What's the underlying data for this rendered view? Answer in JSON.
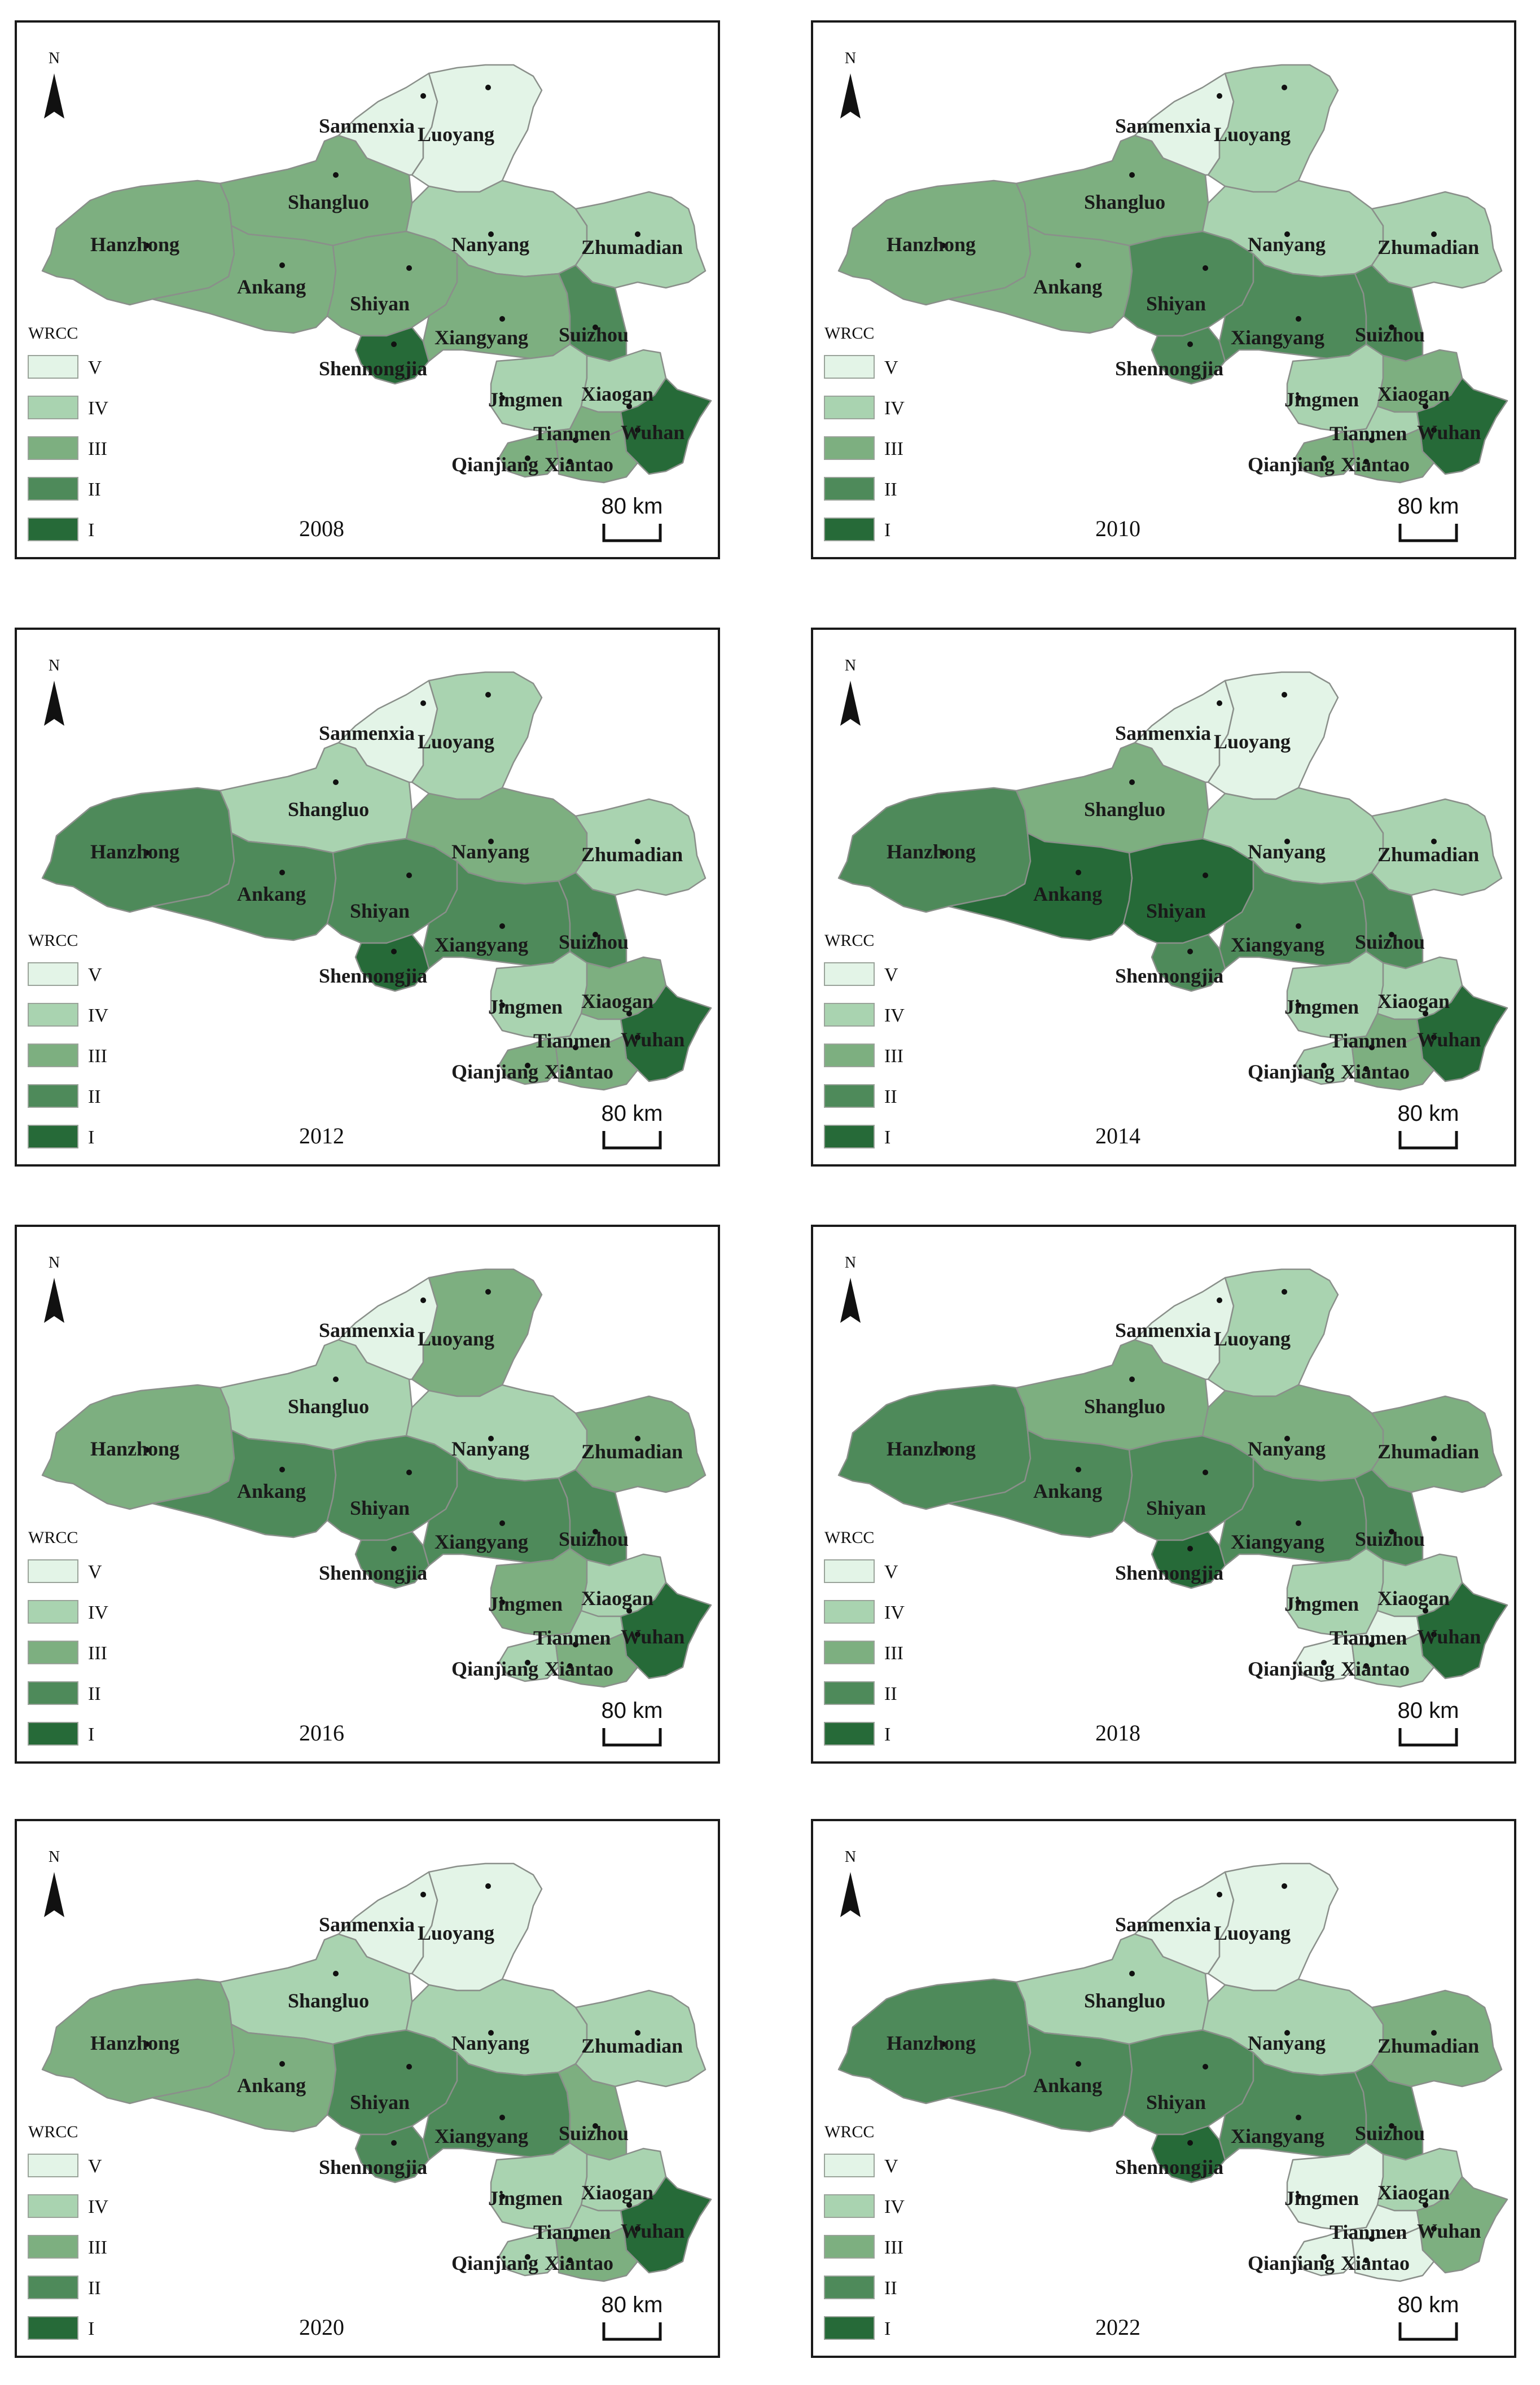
{
  "legend": {
    "title": "WRCC",
    "classes": [
      {
        "label": "V",
        "color": "#e3f4e7"
      },
      {
        "label": "IV",
        "color": "#a9d3b0"
      },
      {
        "label": "III",
        "color": "#7daf80"
      },
      {
        "label": "II",
        "color": "#4e8a5a"
      },
      {
        "label": "I",
        "color": "#266a38"
      }
    ]
  },
  "north_label": "N",
  "scale_label": "80 km",
  "cities": {
    "sanmenxia": "Sanmenxia",
    "luoyang": "Luoyang",
    "shangluo": "Shangluo",
    "hanzhong": "Hanzhong",
    "nanyang": "Nanyang",
    "zhumadian": "Zhumadian",
    "ankang": "Ankang",
    "shiyan": "Shiyan",
    "xiangyang": "Xiangyang",
    "suizhou": "Suizhou",
    "shennongjia": "Shennongjia",
    "jingmen": "Jingmen",
    "xiaogan": "Xiaogan",
    "tianmen": "Tianmen",
    "wuhan": "Wuhan",
    "qianjiang": "Qianjiang",
    "xiantao": "Xiantao"
  },
  "maps": [
    {
      "year": "2008",
      "classes": {
        "sanmenxia": "V",
        "luoyang": "V",
        "shangluo": "III",
        "hanzhong": "III",
        "nanyang": "IV",
        "zhumadian": "IV",
        "ankang": "III",
        "shiyan": "III",
        "xiangyang": "III",
        "suizhou": "II",
        "shennongjia": "I",
        "jingmen": "IV",
        "xiaogan": "IV",
        "tianmen": "III",
        "wuhan": "I",
        "qianjiang": "III",
        "xiantao": "III"
      }
    },
    {
      "year": "2010",
      "classes": {
        "sanmenxia": "V",
        "luoyang": "IV",
        "shangluo": "III",
        "hanzhong": "III",
        "nanyang": "IV",
        "zhumadian": "IV",
        "ankang": "III",
        "shiyan": "II",
        "xiangyang": "II",
        "suizhou": "II",
        "shennongjia": "II",
        "jingmen": "IV",
        "xiaogan": "III",
        "tianmen": "IV",
        "wuhan": "I",
        "qianjiang": "III",
        "xiantao": "III"
      }
    },
    {
      "year": "2012",
      "classes": {
        "sanmenxia": "V",
        "luoyang": "IV",
        "shangluo": "IV",
        "hanzhong": "II",
        "nanyang": "III",
        "zhumadian": "IV",
        "ankang": "II",
        "shiyan": "II",
        "xiangyang": "II",
        "suizhou": "II",
        "shennongjia": "I",
        "jingmen": "IV",
        "xiaogan": "III",
        "tianmen": "IV",
        "wuhan": "I",
        "qianjiang": "III",
        "xiantao": "III"
      }
    },
    {
      "year": "2014",
      "classes": {
        "sanmenxia": "V",
        "luoyang": "V",
        "shangluo": "III",
        "hanzhong": "II",
        "nanyang": "IV",
        "zhumadian": "IV",
        "ankang": "I",
        "shiyan": "I",
        "xiangyang": "II",
        "suizhou": "II",
        "shennongjia": "II",
        "jingmen": "IV",
        "xiaogan": "IV",
        "tianmen": "III",
        "wuhan": "I",
        "qianjiang": "IV",
        "xiantao": "III"
      }
    },
    {
      "year": "2016",
      "classes": {
        "sanmenxia": "V",
        "luoyang": "III",
        "shangluo": "IV",
        "hanzhong": "III",
        "nanyang": "IV",
        "zhumadian": "III",
        "ankang": "II",
        "shiyan": "II",
        "xiangyang": "II",
        "suizhou": "II",
        "shennongjia": "II",
        "jingmen": "III",
        "xiaogan": "IV",
        "tianmen": "IV",
        "wuhan": "I",
        "qianjiang": "IV",
        "xiantao": "III"
      }
    },
    {
      "year": "2018",
      "classes": {
        "sanmenxia": "V",
        "luoyang": "IV",
        "shangluo": "III",
        "hanzhong": "II",
        "nanyang": "III",
        "zhumadian": "III",
        "ankang": "II",
        "shiyan": "II",
        "xiangyang": "II",
        "suizhou": "II",
        "shennongjia": "I",
        "jingmen": "IV",
        "xiaogan": "IV",
        "tianmen": "V",
        "wuhan": "I",
        "qianjiang": "V",
        "xiantao": "IV"
      }
    },
    {
      "year": "2020",
      "classes": {
        "sanmenxia": "V",
        "luoyang": "V",
        "shangluo": "IV",
        "hanzhong": "III",
        "nanyang": "IV",
        "zhumadian": "IV",
        "ankang": "III",
        "shiyan": "II",
        "xiangyang": "II",
        "suizhou": "III",
        "shennongjia": "II",
        "jingmen": "IV",
        "xiaogan": "IV",
        "tianmen": "IV",
        "wuhan": "I",
        "qianjiang": "IV",
        "xiantao": "III"
      }
    },
    {
      "year": "2022",
      "classes": {
        "sanmenxia": "V",
        "luoyang": "V",
        "shangluo": "IV",
        "hanzhong": "II",
        "nanyang": "IV",
        "zhumadian": "III",
        "ankang": "II",
        "shiyan": "II",
        "xiangyang": "II",
        "suizhou": "II",
        "shennongjia": "I",
        "jingmen": "V",
        "xiaogan": "IV",
        "tianmen": "V",
        "wuhan": "III",
        "qianjiang": "V",
        "xiantao": "V"
      }
    }
  ]
}
